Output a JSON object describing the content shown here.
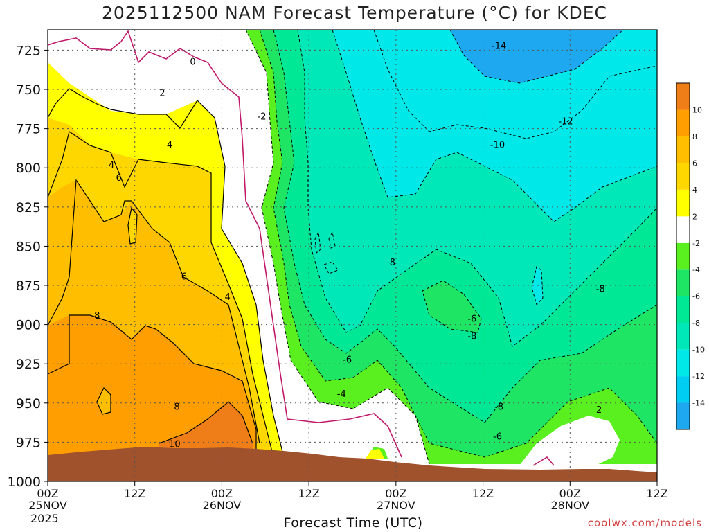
{
  "title": "2025112500 NAM Forecast Temperature (°C) for KDEC",
  "xlabel": "Forecast Time (UTC)",
  "year_label": "2025",
  "credit": "coolwx.com/models",
  "chart_data": {
    "type": "contour",
    "variable": "Temperature",
    "units": "°C",
    "station": "KDEC",
    "y_axis": {
      "label": "",
      "ticks": [
        725,
        750,
        775,
        800,
        825,
        850,
        875,
        900,
        925,
        950,
        975,
        1000
      ],
      "inverted": true,
      "range": [
        1000,
        712
      ]
    },
    "x_axis": {
      "range_hours": [
        0,
        84
      ],
      "ticks": [
        {
          "hour": 0,
          "top": "00Z",
          "mid": "25NOV"
        },
        {
          "hour": 12,
          "top": "12Z",
          "mid": ""
        },
        {
          "hour": 24,
          "top": "00Z",
          "mid": "26NOV"
        },
        {
          "hour": 36,
          "top": "12Z",
          "mid": ""
        },
        {
          "hour": 48,
          "top": "00Z",
          "mid": "27NOV"
        },
        {
          "hour": 60,
          "top": "12Z",
          "mid": ""
        },
        {
          "hour": 72,
          "top": "00Z",
          "mid": "28NOV"
        },
        {
          "hour": 84,
          "top": "12Z",
          "mid": ""
        }
      ]
    },
    "grid": true,
    "colorbar": {
      "levels": [
        -16,
        -14,
        -12,
        -10,
        -8,
        -6,
        -4,
        -2,
        2,
        4,
        6,
        8,
        10,
        12
      ],
      "labels": [
        -14,
        -12,
        -10,
        -8,
        -6,
        -4,
        -2,
        2,
        4,
        6,
        8,
        10
      ],
      "colors": [
        "#1ea8f0",
        "#00cdf2",
        "#00e8e8",
        "#00e8b8",
        "#00e896",
        "#1ee664",
        "#5aef1e",
        "#ffffff",
        "#ffff00",
        "#ffd700",
        "#ffbe00",
        "#ff9e00",
        "#f07e18"
      ]
    },
    "contour_labels": [
      {
        "text": "0",
        "hour": 20.0,
        "p": 732
      },
      {
        "text": "2",
        "hour": 15.8,
        "p": 752
      },
      {
        "text": "4",
        "hour": 16.8,
        "p": 785
      },
      {
        "text": "4",
        "hour": 8.8,
        "p": 798
      },
      {
        "text": "6",
        "hour": 9.8,
        "p": 806
      },
      {
        "text": "6",
        "hour": 18.8,
        "p": 869
      },
      {
        "text": "4",
        "hour": 24.8,
        "p": 882
      },
      {
        "text": "8",
        "hour": 6.8,
        "p": 894
      },
      {
        "text": "8",
        "hour": 17.8,
        "p": 952
      },
      {
        "text": "10",
        "hour": 17.5,
        "p": 976
      },
      {
        "text": "-2",
        "hour": 29.5,
        "p": 767
      },
      {
        "text": "-14",
        "hour": 62.2,
        "p": 722
      },
      {
        "text": "-12",
        "hour": 71.4,
        "p": 770
      },
      {
        "text": "-10",
        "hour": 62.0,
        "p": 785
      },
      {
        "text": "-8",
        "hour": 47.3,
        "p": 860
      },
      {
        "text": "-8",
        "hour": 76.2,
        "p": 877
      },
      {
        "text": "-6",
        "hour": 58.5,
        "p": 896
      },
      {
        "text": "-8",
        "hour": 58.5,
        "p": 907
      },
      {
        "text": "-6",
        "hour": 41.3,
        "p": 922
      },
      {
        "text": "-4",
        "hour": 40.5,
        "p": 944
      },
      {
        "text": "-8",
        "hour": 62.2,
        "p": 952
      },
      {
        "text": "-6",
        "hour": 62.0,
        "p": 971
      },
      {
        "text": "2",
        "hour": 76.0,
        "p": 954
      }
    ]
  }
}
